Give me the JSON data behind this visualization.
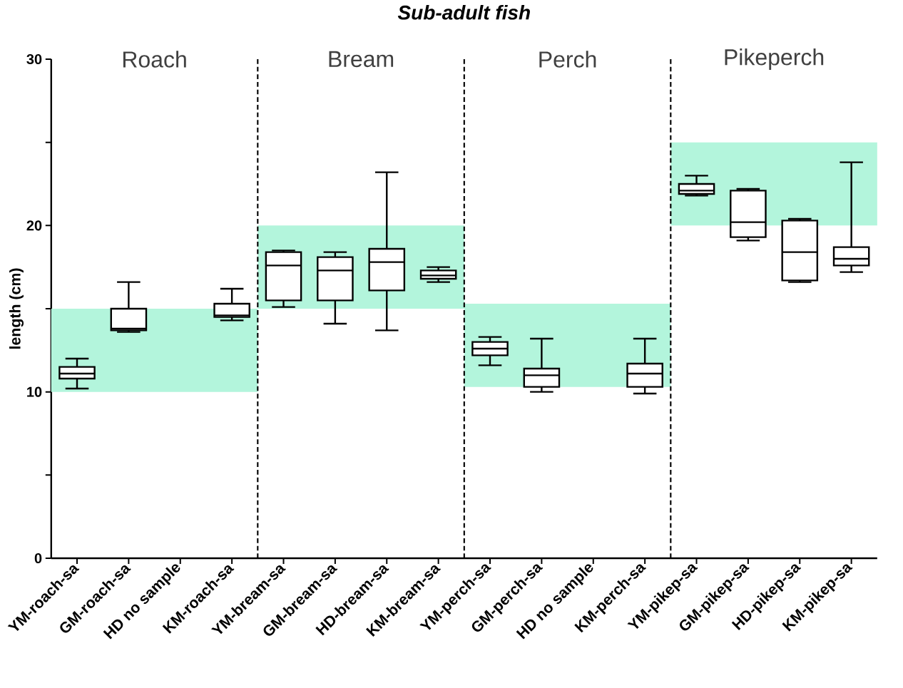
{
  "chart_data": {
    "type": "box",
    "title": "Sub-adult fish",
    "ylabel": "length (cm)",
    "categories": [
      "YM-roach-sa",
      "GM-roach-sa",
      "HD no sample",
      "KM-roach-sa",
      "YM-bream-sa",
      "GM-bream-sa",
      "HD-bream-sa",
      "KM-bream-sa",
      "YM-perch-sa",
      "GM-perch-sa",
      "HD no sample",
      "KM-perch-sa",
      "YM-pikep-sa",
      "GM-pikep-sa",
      "HD-pikep-sa",
      "KM-pikep-sa"
    ],
    "boxes": [
      {
        "low": 10.2,
        "q1": 10.8,
        "median": 11.1,
        "q3": 11.5,
        "high": 12.0
      },
      {
        "low": 13.6,
        "q1": 13.7,
        "median": 13.8,
        "q3": 15.0,
        "high": 16.6
      },
      null,
      {
        "low": 14.3,
        "q1": 14.5,
        "median": 14.6,
        "q3": 15.3,
        "high": 16.2
      },
      {
        "low": 15.1,
        "q1": 15.5,
        "median": 17.6,
        "q3": 18.4,
        "high": 18.5
      },
      {
        "low": 14.1,
        "q1": 15.5,
        "median": 17.3,
        "q3": 18.1,
        "high": 18.4
      },
      {
        "low": 13.7,
        "q1": 16.1,
        "median": 17.8,
        "q3": 18.6,
        "high": 23.2
      },
      {
        "low": 16.6,
        "q1": 16.8,
        "median": 17.0,
        "q3": 17.3,
        "high": 17.5
      },
      {
        "low": 11.6,
        "q1": 12.2,
        "median": 12.6,
        "q3": 13.0,
        "high": 13.3
      },
      {
        "low": 10.0,
        "q1": 10.3,
        "median": 11.0,
        "q3": 11.4,
        "high": 13.2
      },
      null,
      {
        "low": 9.9,
        "q1": 10.3,
        "median": 11.1,
        "q3": 11.7,
        "high": 13.2
      },
      {
        "low": 21.8,
        "q1": 21.9,
        "median": 22.1,
        "q3": 22.5,
        "high": 23.0
      },
      {
        "low": 19.1,
        "q1": 19.3,
        "median": 20.2,
        "q3": 22.1,
        "high": 22.2
      },
      {
        "low": 16.6,
        "q1": 16.7,
        "median": 18.4,
        "q3": 20.3,
        "high": 20.4
      },
      {
        "low": 17.2,
        "q1": 17.6,
        "median": 18.0,
        "q3": 18.7,
        "high": 23.8
      }
    ],
    "ylim": [
      0,
      30
    ],
    "yticks": [
      0,
      {
        "value": 5,
        "label": null
      },
      10,
      {
        "value": 15,
        "label": null
      },
      20,
      {
        "value": 25,
        "label": null
      },
      30
    ],
    "annotations": [
      "Roach",
      "Bream",
      "Perch",
      "Pikeperch"
    ],
    "bands": [
      {
        "axis": "y",
        "from": 10,
        "to": 15,
        "color": "#b3f5dc"
      },
      {
        "axis": "y",
        "from": 15,
        "to": 20,
        "color": "#b3f5dc"
      },
      {
        "axis": "y",
        "from": 10.3,
        "to": 15.3,
        "color": "#b3f5dc"
      },
      {
        "axis": "y",
        "from": 20,
        "to": 25,
        "color": "#b3f5dc"
      }
    ]
  }
}
